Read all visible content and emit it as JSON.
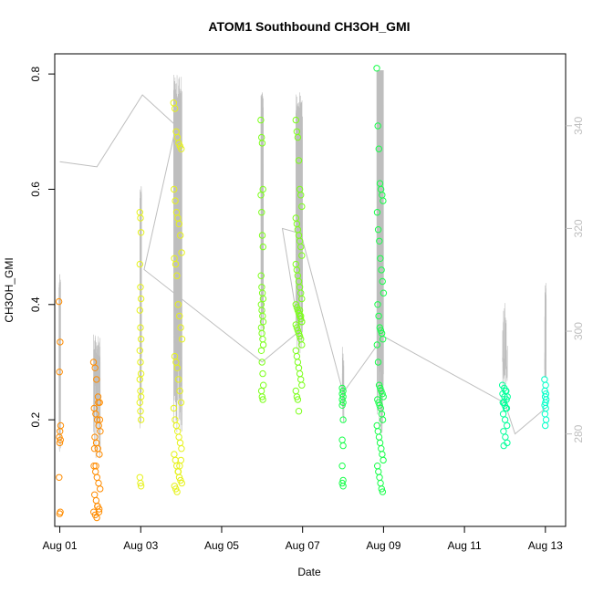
{
  "chart_data": {
    "type": "scatter",
    "title": "ATOM1 Southbound CH3OH_GMI",
    "xlabel": "Date",
    "ylabel": "CH3OH_GMI",
    "xlim": [
      "2016-07-31T21:00",
      "2016-08-13T12:00"
    ],
    "ylim": [
      0.015,
      0.835
    ],
    "y2lim": [
      262,
      354
    ],
    "x_ticks": [
      {
        "value": "2016-08-01",
        "label": "Aug 01"
      },
      {
        "value": "2016-08-03",
        "label": "Aug 03"
      },
      {
        "value": "2016-08-05",
        "label": "Aug 05"
      },
      {
        "value": "2016-08-07",
        "label": "Aug 07"
      },
      {
        "value": "2016-08-09",
        "label": "Aug 09"
      },
      {
        "value": "2016-08-11",
        "label": "Aug 11"
      },
      {
        "value": "2016-08-13",
        "label": "Aug 13"
      }
    ],
    "y_ticks": [
      0.2,
      0.4,
      0.6,
      0.8
    ],
    "y2_ticks": [
      280,
      300,
      320,
      340
    ],
    "colors": {
      "secondary_line": "#bebebe",
      "flight_colors": [
        "#ff8c00",
        "#e6f21a",
        "#7cff1a",
        "#17ff4a",
        "#00ff99",
        "#00ffc8"
      ]
    },
    "secondary_series": [
      {
        "x": "2016-08-01T00:00",
        "y": 333
      },
      {
        "x": "2016-08-01T22:00",
        "y": 332
      },
      {
        "x": "2016-08-03T01:00",
        "y": 346
      },
      {
        "x": "2016-08-03T21:00",
        "y": 340
      },
      {
        "x": "2016-08-03T02:00",
        "y": 312
      },
      {
        "x": "2016-08-06T00:00",
        "y": 294
      },
      {
        "x": "2016-08-06T22:00",
        "y": 300
      },
      {
        "x": "2016-08-06T12:00",
        "y": 320
      },
      {
        "x": "2016-08-06T23:00",
        "y": 319
      },
      {
        "x": "2016-08-08T00:00",
        "y": 288
      },
      {
        "x": "2016-08-09T00:00",
        "y": 299
      },
      {
        "x": "2016-08-12T00:00",
        "y": 286
      },
      {
        "x": "2016-08-12T06:00",
        "y": 280
      },
      {
        "x": "2016-08-13T00:00",
        "y": 285
      }
    ],
    "series": [
      {
        "x_center": "2016-08-01T00:00",
        "x_spread_h": 1,
        "points": [
          0.405,
          0.335,
          0.283,
          0.19,
          0.18,
          0.17,
          0.165,
          0.16,
          0.1,
          0.04,
          0.037
        ]
      },
      {
        "x_center": "2016-08-01T22:00",
        "x_spread_h": 4,
        "points": [
          0.3,
          0.29,
          0.27,
          0.24,
          0.23,
          0.22,
          0.21,
          0.2,
          0.19,
          0.18,
          0.17,
          0.16,
          0.15,
          0.14,
          0.12,
          0.11,
          0.1,
          0.09,
          0.08,
          0.07,
          0.06,
          0.05,
          0.045,
          0.04,
          0.035,
          0.03,
          0.23,
          0.2,
          0.15,
          0.12,
          0.05,
          0.04
        ]
      },
      {
        "x_center": "2016-08-03T00:00",
        "x_spread_h": 1,
        "points": [
          0.56,
          0.55,
          0.525,
          0.47,
          0.43,
          0.41,
          0.39,
          0.36,
          0.34,
          0.32,
          0.3,
          0.28,
          0.27,
          0.25,
          0.24,
          0.23,
          0.215,
          0.2,
          0.1,
          0.09,
          0.085
        ]
      },
      {
        "x_center": "2016-08-03T22:00",
        "x_spread_h": 5,
        "points": [
          0.75,
          0.74,
          0.7,
          0.69,
          0.68,
          0.675,
          0.67,
          0.6,
          0.58,
          0.56,
          0.55,
          0.54,
          0.52,
          0.49,
          0.48,
          0.47,
          0.45,
          0.4,
          0.38,
          0.36,
          0.34,
          0.31,
          0.3,
          0.29,
          0.27,
          0.25,
          0.23,
          0.22,
          0.2,
          0.19,
          0.18,
          0.17,
          0.16,
          0.15,
          0.14,
          0.13,
          0.12,
          0.11,
          0.1,
          0.095,
          0.09,
          0.085,
          0.08,
          0.075,
          0.11,
          0.12,
          0.13
        ]
      },
      {
        "x_center": "2016-08-06T00:00",
        "x_spread_h": 1.5,
        "points": [
          0.72,
          0.69,
          0.68,
          0.6,
          0.59,
          0.56,
          0.52,
          0.5,
          0.45,
          0.43,
          0.42,
          0.41,
          0.4,
          0.39,
          0.38,
          0.37,
          0.36,
          0.35,
          0.34,
          0.33,
          0.32,
          0.3,
          0.28,
          0.26,
          0.25,
          0.24,
          0.235
        ]
      },
      {
        "x_center": "2016-08-06T22:00",
        "x_spread_h": 4,
        "points": [
          0.72,
          0.7,
          0.69,
          0.65,
          0.6,
          0.59,
          0.57,
          0.55,
          0.54,
          0.53,
          0.52,
          0.51,
          0.5,
          0.485,
          0.47,
          0.46,
          0.45,
          0.44,
          0.43,
          0.42,
          0.41,
          0.4,
          0.395,
          0.39,
          0.385,
          0.38,
          0.375,
          0.37,
          0.365,
          0.36,
          0.355,
          0.35,
          0.345,
          0.34,
          0.33,
          0.32,
          0.31,
          0.3,
          0.29,
          0.28,
          0.27,
          0.26,
          0.25,
          0.24,
          0.235,
          0.215,
          0.39,
          0.38,
          0.37
        ]
      },
      {
        "x_center": "2016-08-08T00:00",
        "x_spread_h": 1,
        "points": [
          0.255,
          0.25,
          0.245,
          0.24,
          0.235,
          0.23,
          0.225,
          0.2,
          0.165,
          0.155,
          0.12,
          0.095,
          0.09,
          0.085
        ]
      },
      {
        "x_center": "2016-08-08T22:00",
        "x_spread_h": 4,
        "points": [
          0.81,
          0.71,
          0.67,
          0.61,
          0.6,
          0.59,
          0.58,
          0.56,
          0.53,
          0.51,
          0.48,
          0.46,
          0.44,
          0.42,
          0.4,
          0.38,
          0.36,
          0.355,
          0.35,
          0.34,
          0.33,
          0.3,
          0.26,
          0.255,
          0.25,
          0.245,
          0.24,
          0.235,
          0.23,
          0.225,
          0.22,
          0.21,
          0.2,
          0.19,
          0.18,
          0.17,
          0.16,
          0.15,
          0.14,
          0.13,
          0.12,
          0.11,
          0.1,
          0.09,
          0.08,
          0.075
        ]
      },
      {
        "x_center": "2016-08-12T00:00",
        "x_spread_h": 3,
        "points": [
          0.26,
          0.255,
          0.25,
          0.245,
          0.24,
          0.235,
          0.23,
          0.225,
          0.22,
          0.21,
          0.2,
          0.19,
          0.18,
          0.17,
          0.16,
          0.155,
          0.25,
          0.24,
          0.23,
          0.22
        ]
      },
      {
        "x_center": "2016-08-13T00:00",
        "x_spread_h": 1,
        "points": [
          0.27,
          0.26,
          0.25,
          0.245,
          0.24,
          0.235,
          0.23,
          0.225,
          0.22,
          0.21,
          0.2,
          0.19
        ]
      }
    ],
    "series_color_index": [
      0,
      0,
      1,
      1,
      2,
      2,
      3,
      3,
      4,
      5
    ],
    "grid": false,
    "legend": "none"
  }
}
